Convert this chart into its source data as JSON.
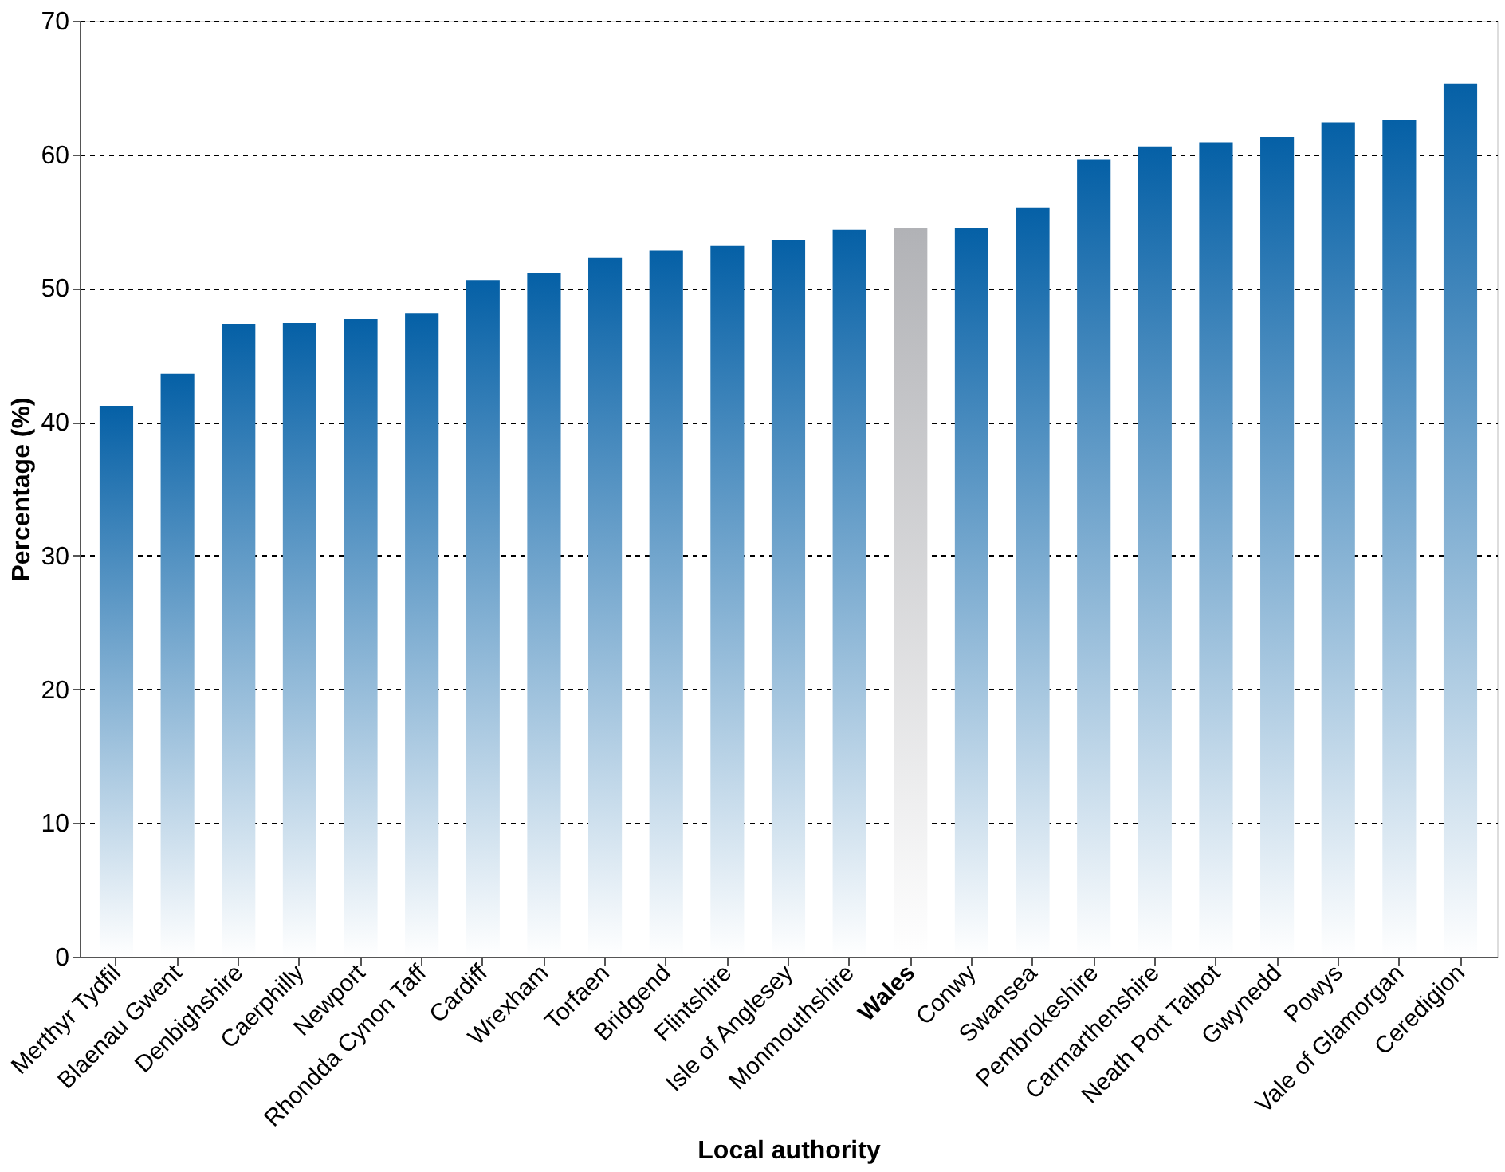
{
  "chart_data": {
    "type": "bar",
    "xlabel": "Local authority",
    "ylabel": "Percentage (%)",
    "categories": [
      "Merthyr Tydfil",
      "Blaenau Gwent",
      "Denbighshire",
      "Caerphilly",
      "Newport",
      "Rhondda Cynon Taff",
      "Cardiff",
      "Wrexham",
      "Torfaen",
      "Bridgend",
      "Flintshire",
      "Isle of Anglesey",
      "Monmouthshire",
      "Wales",
      "Conwy",
      "Swansea",
      "Pembrokeshire",
      "Carmarthenshire",
      "Neath Port Talbot",
      "Gwynedd",
      "Powys",
      "Vale of Glamorgan",
      "Ceredigion"
    ],
    "values": [
      41.2,
      43.6,
      47.3,
      47.4,
      47.7,
      48.1,
      50.6,
      51.1,
      52.3,
      52.8,
      53.2,
      53.6,
      54.4,
      54.5,
      54.5,
      56.0,
      59.6,
      60.6,
      60.9,
      61.3,
      62.4,
      62.6,
      65.3
    ],
    "colors": [
      "#0560a6",
      "#0560a6",
      "#0560a6",
      "#0560a6",
      "#0560a6",
      "#0560a6",
      "#0560a6",
      "#0560a6",
      "#0560a6",
      "#0560a6",
      "#0560a6",
      "#0560a6",
      "#0560a6",
      "#b1b2b6",
      "#0560a6",
      "#0560a6",
      "#0560a6",
      "#0560a6",
      "#0560a6",
      "#0560a6",
      "#0560a6",
      "#0560a6",
      "#0560a6"
    ],
    "ylim": [
      0,
      70
    ],
    "yticks": [
      0,
      10,
      20,
      30,
      40,
      50,
      60,
      70
    ],
    "grid": "y",
    "legend": false
  }
}
